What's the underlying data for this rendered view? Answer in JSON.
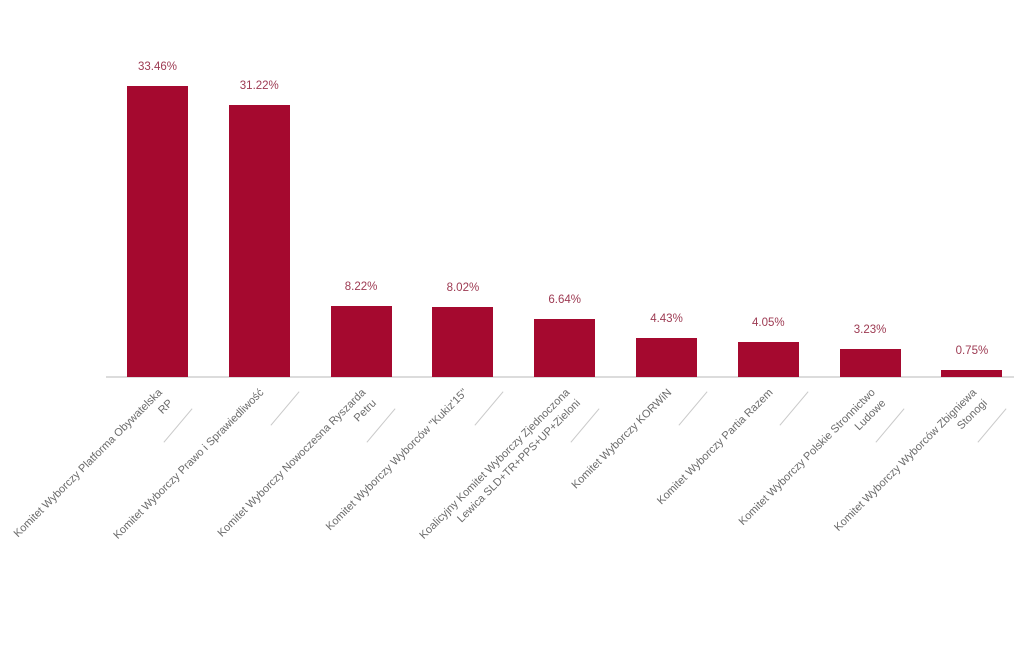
{
  "chart_data": {
    "type": "bar",
    "title": "",
    "xlabel": "",
    "ylabel": "",
    "ylim": [
      0,
      35
    ],
    "grid": false,
    "legend": "none",
    "background": "#ffffff",
    "bar_color": "#a5092f",
    "value_label_color": "#9d3a52",
    "tick_label_color": "#6a6a6a",
    "axis_line_color": "#dcdcdc",
    "label_tick_color": "#c9c9c9",
    "categories": [
      [
        "Komitet Wyborczy Platforma Obywatelska",
        "RP"
      ],
      [
        "Komitet Wyborczy Prawo i Sprawiedliwość"
      ],
      [
        "Komitet Wyborczy Nowoczesna Ryszarda",
        "Petru"
      ],
      [
        "Komitet Wyborczy Wyborców \"Kukiz'15\""
      ],
      [
        "Koalicyjny Komitet Wyborczy Zjednoczona",
        "Lewica SLD+TR+PPS+UP+Zieloni"
      ],
      [
        "Komitet Wyborczy KORWiN"
      ],
      [
        "Komitet Wyborczy Partia Razem"
      ],
      [
        "Komitet Wyborczy Polskie Stronnictwo",
        "Ludowe"
      ],
      [
        "Komitet Wyborczy Wyborców Zbigniewa",
        "Stonogi"
      ]
    ],
    "values": [
      33.46,
      31.22,
      8.22,
      8.02,
      6.64,
      4.43,
      4.05,
      3.23,
      0.75
    ],
    "value_labels": [
      "33.46%",
      "31.22%",
      "8.22%",
      "8.02%",
      "6.64%",
      "4.43%",
      "4.05%",
      "3.23%",
      "0.75%"
    ]
  }
}
